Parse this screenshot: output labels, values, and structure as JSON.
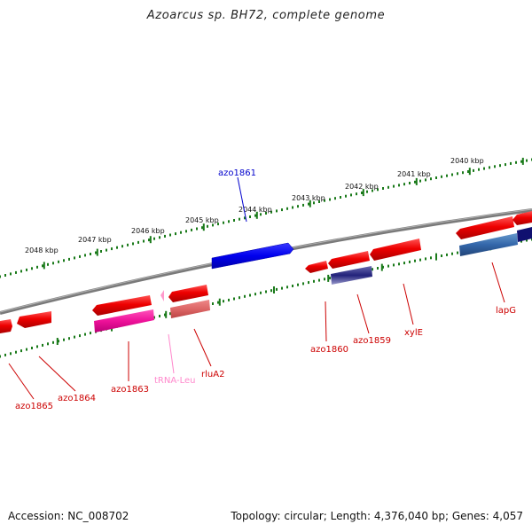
{
  "title": "Azoarcus sp. BH72, complete genome",
  "footer": {
    "accession": "Accession: NC_008702",
    "stats": "Topology: circular; Length: 4,376,040 bp; Genes: 4,057"
  },
  "colors": {
    "backbone": "#808080",
    "ticks": "#1a7a1a",
    "forward_gene": "#ee0000",
    "callout_red": "#cc0000",
    "callout_blue": "#0000cc",
    "callout_pink": "#ff88cc"
  },
  "tick_labels": [
    "2048 kbp",
    "2047 kbp",
    "2046 kbp",
    "2045 kbp",
    "2044 kbp",
    "2043 kbp",
    "2042 kbp",
    "2041 kbp",
    "2040 kbp"
  ],
  "gene_labels": [
    "azo1861",
    "azo1860",
    "azo1859",
    "xylE",
    "lapG",
    "azo1865",
    "azo1864",
    "azo1863",
    "tRNA-Leu",
    "rluA2"
  ]
}
